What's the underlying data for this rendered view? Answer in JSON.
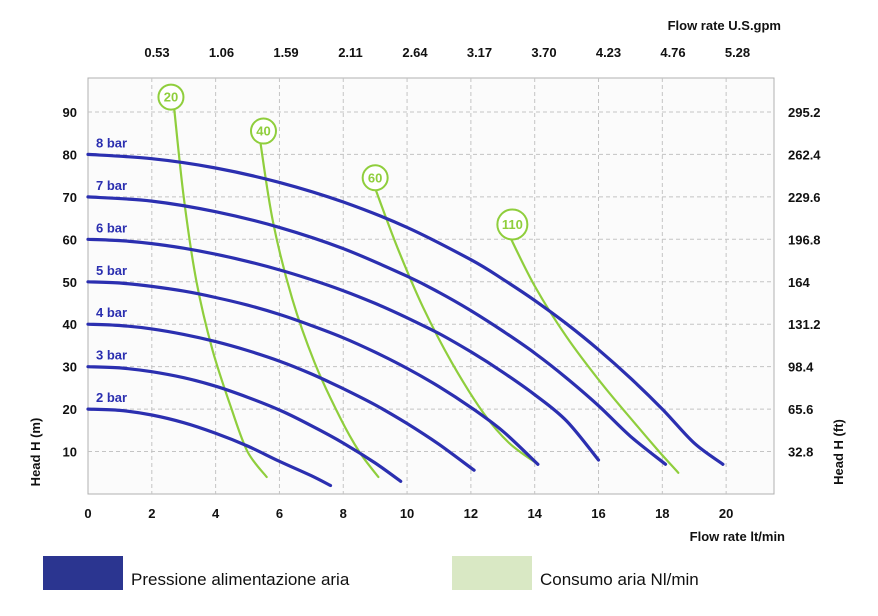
{
  "chart_data": {
    "type": "line",
    "title": "",
    "x_bottom": {
      "label": "Flow rate  lt/min",
      "ticks": [
        0,
        2,
        4,
        6,
        8,
        10,
        12,
        14,
        16,
        18,
        20
      ],
      "range": [
        0,
        21.5
      ]
    },
    "x_top": {
      "label": "Flow rate U.S.gpm",
      "ticks": [
        "0.53",
        "1.06",
        "1.59",
        "2.11",
        "2.64",
        "3.17",
        "3.70",
        "4.23",
        "4.76",
        "5.28"
      ]
    },
    "y_left": {
      "label": "Head H (m)",
      "ticks": [
        10,
        20,
        30,
        40,
        50,
        60,
        70,
        80,
        90
      ],
      "range": [
        0,
        98
      ]
    },
    "y_right": {
      "label": "Head H (ft)",
      "ticks": [
        "32.8",
        "65.6",
        "98.4",
        "131.2",
        "164",
        "196.8",
        "229.6",
        "262.4",
        "295.2"
      ]
    },
    "grid": true,
    "colors": {
      "pressure": "#2b2fb0",
      "air": "#8fce3c"
    },
    "pressure_series": [
      {
        "name": "2 bar",
        "x": [
          0,
          1,
          2,
          3,
          4,
          5,
          6,
          7,
          7.6
        ],
        "y": [
          20,
          19.7,
          18.6,
          16.8,
          14.3,
          11.3,
          7.7,
          4.3,
          2
        ]
      },
      {
        "name": "3 bar",
        "x": [
          0,
          1,
          2,
          3,
          4,
          5,
          6,
          7,
          8,
          9,
          9.8
        ],
        "y": [
          30,
          29.7,
          28.8,
          27.4,
          25.4,
          22.8,
          19.8,
          16.1,
          12,
          7.3,
          3
        ]
      },
      {
        "name": "4 bar",
        "x": [
          0,
          1,
          2,
          3,
          4,
          5,
          6,
          7,
          8,
          9,
          10,
          11,
          12.1
        ],
        "y": [
          40,
          39.7,
          38.9,
          37.6,
          35.9,
          33.8,
          31.3,
          28.3,
          24.8,
          21,
          16.6,
          11.7,
          5.6
        ]
      },
      {
        "name": "5 bar",
        "x": [
          0,
          1,
          2,
          3,
          4,
          5,
          6,
          7,
          8,
          9,
          10,
          11,
          12,
          13,
          14.1
        ],
        "y": [
          50,
          49.7,
          48.9,
          47.8,
          46.3,
          44.5,
          42.3,
          39.7,
          36.8,
          33.4,
          29.6,
          25.3,
          20.4,
          14.8,
          7
        ]
      },
      {
        "name": "6 bar",
        "x": [
          0,
          1,
          2,
          3,
          4,
          5,
          6,
          7,
          8,
          9,
          10,
          11,
          12,
          13,
          14,
          15,
          16
        ],
        "y": [
          60,
          59.7,
          59,
          57.9,
          56.5,
          54.8,
          52.8,
          50.5,
          47.9,
          44.9,
          41.5,
          37.8,
          33.5,
          28.7,
          23.4,
          17.2,
          8
        ]
      },
      {
        "name": "7 bar",
        "x": [
          0,
          2,
          4,
          6,
          8,
          10,
          11,
          12,
          13,
          14,
          15,
          16,
          17,
          18.1
        ],
        "y": [
          70,
          69,
          66.5,
          62.8,
          57.8,
          51.3,
          47.5,
          43.2,
          38.4,
          33.2,
          27.3,
          20.8,
          13.6,
          7
        ]
      },
      {
        "name": "8 bar",
        "x": [
          0,
          2,
          4,
          6,
          8,
          10,
          12,
          13,
          14,
          15,
          16,
          17,
          18,
          19,
          19.9
        ],
        "y": [
          80,
          79,
          76.8,
          73.4,
          68.8,
          62.8,
          55.2,
          50.6,
          45.6,
          40.1,
          34,
          27.3,
          20,
          12,
          7
        ]
      }
    ],
    "air_series": [
      {
        "name": "20",
        "x": [
          2.7,
          3,
          3.4,
          3.9,
          4.5,
          5.0,
          5.6
        ],
        "y": [
          91,
          70,
          50,
          34,
          20,
          10,
          4
        ]
      },
      {
        "name": "40",
        "x": [
          5.4,
          5.8,
          6.4,
          7.1,
          7.9,
          8.5,
          9.1
        ],
        "y": [
          83,
          64,
          46,
          31,
          18,
          10,
          4
        ]
      },
      {
        "name": "60",
        "x": [
          9.0,
          9.7,
          10.5,
          11.4,
          12.4,
          13.2,
          14.1
        ],
        "y": [
          72,
          58,
          44,
          31,
          19,
          12,
          7
        ]
      },
      {
        "name": "110",
        "x": [
          13.2,
          14.0,
          15.0,
          16.1,
          17.1,
          17.9,
          18.5
        ],
        "y": [
          61,
          49,
          37,
          26,
          17,
          10,
          5
        ]
      }
    ],
    "air_label_positions": [
      {
        "x": 2.6,
        "y": 93.5
      },
      {
        "x": 5.5,
        "y": 85.5
      },
      {
        "x": 9.0,
        "y": 74.5
      },
      {
        "x": 13.3,
        "y": 63.5
      }
    ]
  },
  "legend": [
    {
      "label": "Pressione alimentazione aria",
      "color": "#2b3590"
    },
    {
      "label": "Consumo aria Nl/min",
      "color": "#d9e8c4"
    }
  ]
}
